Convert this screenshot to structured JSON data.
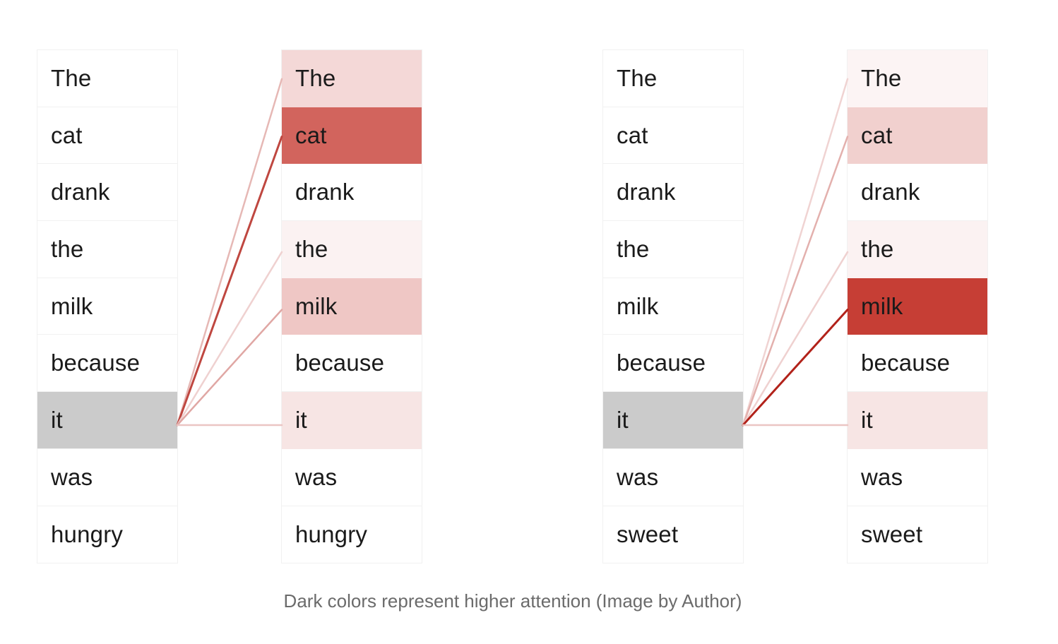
{
  "panels": [
    {
      "source_tokens": [
        "The",
        "cat",
        "drank",
        "the",
        "milk",
        "because",
        "it",
        "was",
        "hungry"
      ],
      "target_tokens": [
        "The",
        "cat",
        "drank",
        "the",
        "milk",
        "because",
        "it",
        "was",
        "hungry"
      ],
      "query_index": 6,
      "attention": [
        0.18,
        0.72,
        0.0,
        0.06,
        0.26,
        0.0,
        0.12,
        0.0,
        0.0
      ]
    },
    {
      "source_tokens": [
        "The",
        "cat",
        "drank",
        "the",
        "milk",
        "because",
        "it",
        "was",
        "sweet"
      ],
      "target_tokens": [
        "The",
        "cat",
        "drank",
        "the",
        "milk",
        "because",
        "it",
        "was",
        "sweet"
      ],
      "query_index": 6,
      "attention": [
        0.05,
        0.22,
        0.0,
        0.06,
        0.9,
        0.0,
        0.12,
        0.0,
        0.0
      ]
    }
  ],
  "colors": {
    "query_highlight": "#cbcbcb",
    "attention_high": "#c0281e",
    "attention_low": "#ffffff",
    "caption": "#6b6b6b"
  },
  "caption": "Dark colors represent higher attention (Image by Author)"
}
